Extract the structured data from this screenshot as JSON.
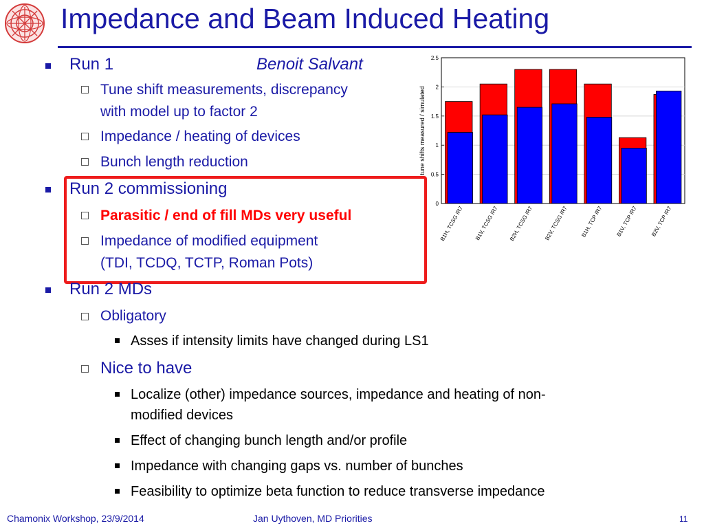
{
  "slide": {
    "title": "Impedance and Beam Induced Heating",
    "author": "Benoit Salvant",
    "bullets": {
      "run1": "Run 1",
      "run1_sub": [
        "Tune shift measurements, discrepancy",
        "with model up to factor 2",
        "Impedance / heating of devices",
        "Bunch length reduction"
      ],
      "run2c": "Run 2 commissioning",
      "run2c_sub": [
        "Parasitic / end of fill MDs very useful",
        "Impedance of modified equipment",
        "(TDI, TCDQ, TCTP, Roman Pots)"
      ],
      "run2m": "Run 2 MDs",
      "oblig": "Obligatory",
      "oblig_sub": [
        "Asses if intensity limits have changed during LS1"
      ],
      "nice": "Nice to have",
      "nice_sub": [
        "Localize (other) impedance sources, impedance and heating of non-",
        "modified devices",
        "Effect of changing bunch length and/or profile",
        "Impedance with changing gaps vs. number of bunches",
        "Feasibility to optimize beta function to reduce transverse impedance"
      ]
    }
  },
  "footer": {
    "left": "Chamonix Workshop, 23/9/2014",
    "center": "Jan Uythoven, MD Priorities",
    "page": "11"
  },
  "chart_data": {
    "type": "bar",
    "categories": [
      "B1H, TCSG IR7",
      "B1V, TCSG IR7",
      "B2H, TCSG IR7",
      "B2V, TCSG IR7",
      "B1H, TCP IR7",
      "B1V, TCP IR7",
      "B2V, TCP IR7"
    ],
    "series": [
      {
        "values": [
          1.75,
          2.05,
          2.3,
          2.3,
          2.05,
          1.13,
          1.87
        ],
        "color": "#ff0000"
      },
      {
        "values": [
          1.22,
          1.52,
          1.65,
          1.71,
          1.48,
          0.95,
          1.93
        ],
        "color": "#0000ff"
      }
    ],
    "ylabel": "tune shifts measured / simulated",
    "ylim": [
      0,
      2.5
    ],
    "yticks": [
      "0",
      "0.5",
      "1",
      "1.5",
      "2",
      "2.5"
    ],
    "grid_y": true
  },
  "colors": {
    "title": "#1a1aa6",
    "highlight": "#ff0000",
    "frame": "#ee1c1c"
  }
}
